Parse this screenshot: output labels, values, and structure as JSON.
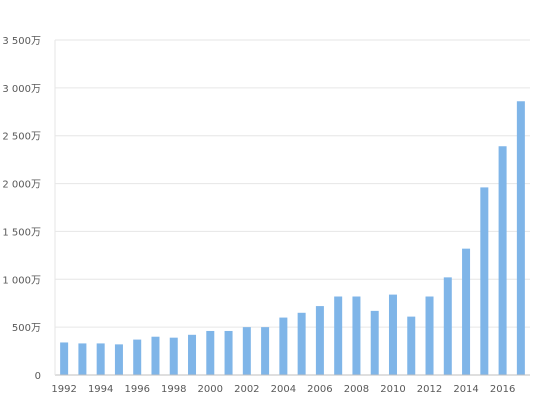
{
  "chart_data": {
    "type": "bar",
    "title": "",
    "xlabel": "",
    "ylabel": "",
    "categories": [
      "1992",
      "1993",
      "1994",
      "1995",
      "1996",
      "1997",
      "1998",
      "1999",
      "2000",
      "2001",
      "2002",
      "2003",
      "2004",
      "2005",
      "2006",
      "2007",
      "2008",
      "2009",
      "2010",
      "2011",
      "2012",
      "2013",
      "2014",
      "2015",
      "2016",
      "2017"
    ],
    "x_tick_labels": [
      "1992",
      "",
      "1994",
      "",
      "1996",
      "",
      "1998",
      "",
      "2000",
      "",
      "2002",
      "",
      "2004",
      "",
      "2006",
      "",
      "2008",
      "",
      "2010",
      "",
      "2012",
      "",
      "2014",
      "",
      "2016",
      ""
    ],
    "series": [
      {
        "values": [
          340,
          330,
          330,
          320,
          370,
          400,
          390,
          420,
          460,
          460,
          500,
          500,
          600,
          650,
          720,
          820,
          820,
          670,
          840,
          610,
          820,
          1020,
          1320,
          1960,
          2390,
          2860
        ]
      }
    ],
    "ylim": [
      0,
      3500
    ],
    "y_ticks": [
      0,
      500,
      1000,
      1500,
      2000,
      2500,
      3000,
      3500
    ],
    "y_tick_labels": [
      "0",
      "500万",
      "1 000万",
      "1 500万",
      "2 000万",
      "2 500万",
      "3 000万",
      "3 500万"
    ],
    "grid": true,
    "legend": "none",
    "colors": {
      "bar": "#7fb5e8",
      "grid": "#e6e6e6",
      "axis": "#bfbfbf",
      "text": "#595959"
    }
  }
}
